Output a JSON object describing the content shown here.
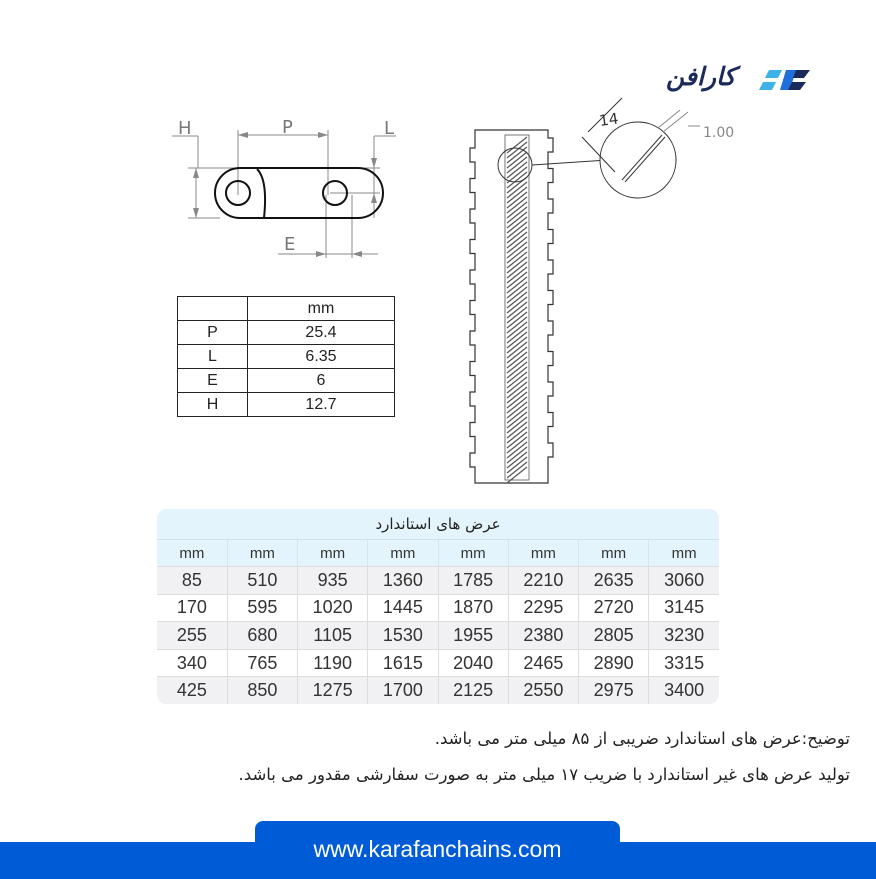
{
  "brand": {
    "name": "کارافن",
    "colors": {
      "navy": "#1a2a5a",
      "blue": "#1e6fd9",
      "cyan": "#3fb3e8"
    }
  },
  "drawing": {
    "labels": {
      "H": "H",
      "P": "P",
      "L": "L",
      "E": "E"
    },
    "detail_dimension_14": "14",
    "detail_dimension_1": "1.00"
  },
  "dimensions_table": {
    "unit_header": "mm",
    "rows": [
      {
        "key": "P",
        "value": "25.4"
      },
      {
        "key": "L",
        "value": "6.35"
      },
      {
        "key": "E",
        "value": "6"
      },
      {
        "key": "H",
        "value": "12.7"
      }
    ]
  },
  "standard_widths": {
    "title": "عرض های استاندارد",
    "headers": [
      "mm",
      "mm",
      "mm",
      "mm",
      "mm",
      "mm",
      "mm",
      "mm"
    ],
    "rows": [
      [
        "85",
        "510",
        "935",
        "1360",
        "1785",
        "2210",
        "2635",
        "3060"
      ],
      [
        "170",
        "595",
        "1020",
        "1445",
        "1870",
        "2295",
        "2720",
        "3145"
      ],
      [
        "255",
        "680",
        "1105",
        "1530",
        "1955",
        "2380",
        "2805",
        "3230"
      ],
      [
        "340",
        "765",
        "1190",
        "1615",
        "2040",
        "2465",
        "2890",
        "3315"
      ],
      [
        "425",
        "850",
        "1275",
        "1700",
        "2125",
        "2550",
        "2975",
        "3400"
      ]
    ]
  },
  "notes": [
    "توضیح:عرض های استاندارد ضریبی از ۸۵ میلی متر می باشد.",
    "تولید عرض های غیر استاندارد با ضریب ۱۷ میلی متر به صورت سفارشی مقدور می باشد."
  ],
  "footer": {
    "url": "www.karafanchains.com",
    "color": "#005bd6"
  }
}
